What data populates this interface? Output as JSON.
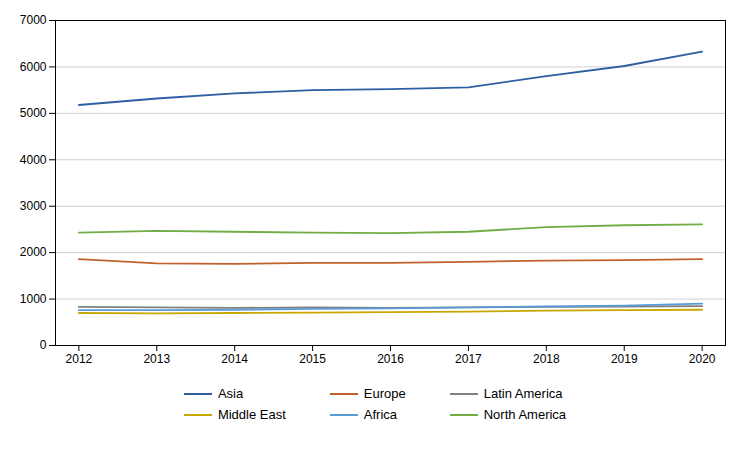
{
  "chart_data": {
    "type": "line",
    "x": [
      2012,
      2013,
      2014,
      2015,
      2016,
      2017,
      2018,
      2019,
      2020
    ],
    "series": [
      {
        "name": "Asia",
        "color": "#2e5fa3",
        "values": [
          5180,
          5320,
          5430,
          5500,
          5520,
          5560,
          5800,
          6020,
          6330
        ]
      },
      {
        "name": "Europe",
        "color": "#c0612b",
        "values": [
          1860,
          1770,
          1760,
          1780,
          1780,
          1800,
          1830,
          1840,
          1860
        ]
      },
      {
        "name": "Latin America",
        "color": "#808080",
        "values": [
          830,
          820,
          810,
          820,
          810,
          820,
          830,
          840,
          850
        ]
      },
      {
        "name": "Middle East",
        "color": "#c8a800",
        "values": [
          700,
          690,
          700,
          710,
          720,
          730,
          750,
          760,
          770
        ]
      },
      {
        "name": "Africa",
        "color": "#5b9bd5",
        "values": [
          760,
          760,
          770,
          790,
          800,
          820,
          840,
          860,
          900
        ]
      },
      {
        "name": "North America",
        "color": "#70ad47",
        "values": [
          2430,
          2470,
          2450,
          2430,
          2420,
          2450,
          2550,
          2590,
          2610
        ]
      }
    ],
    "xlim": [
      2011.7,
      2020.3
    ],
    "xticks": [
      2012,
      2013,
      2014,
      2015,
      2016,
      2017,
      2018,
      2019,
      2020
    ],
    "ylim": [
      0,
      7000
    ],
    "yticks": [
      0,
      1000,
      2000,
      3000,
      4000,
      5000,
      6000,
      7000
    ],
    "grid": true,
    "legend": "bottom"
  }
}
